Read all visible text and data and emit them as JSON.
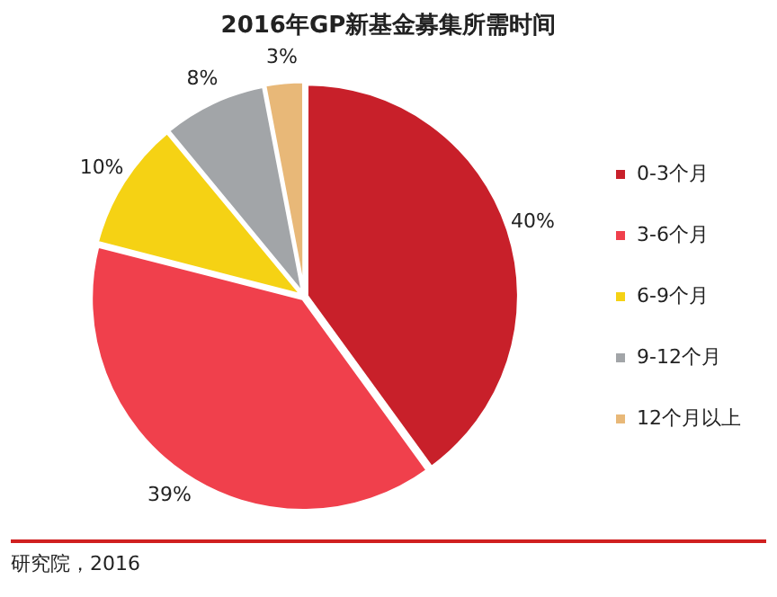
{
  "chart_data": {
    "type": "pie",
    "title": "2016年GP新基金募集所需时间",
    "categories": [
      "0-3个月",
      "3-6个月",
      "6-9个月",
      "9-12个月",
      "12个月以上"
    ],
    "values": [
      40,
      39,
      10,
      8,
      3
    ],
    "value_labels": [
      "40%",
      "39%",
      "10%",
      "8%",
      "3%"
    ],
    "colors": [
      "#c8202a",
      "#f0404c",
      "#f5d214",
      "#a2a5a8",
      "#e8b878"
    ],
    "legend": "right",
    "annotations": [
      "研究院，2016"
    ]
  }
}
